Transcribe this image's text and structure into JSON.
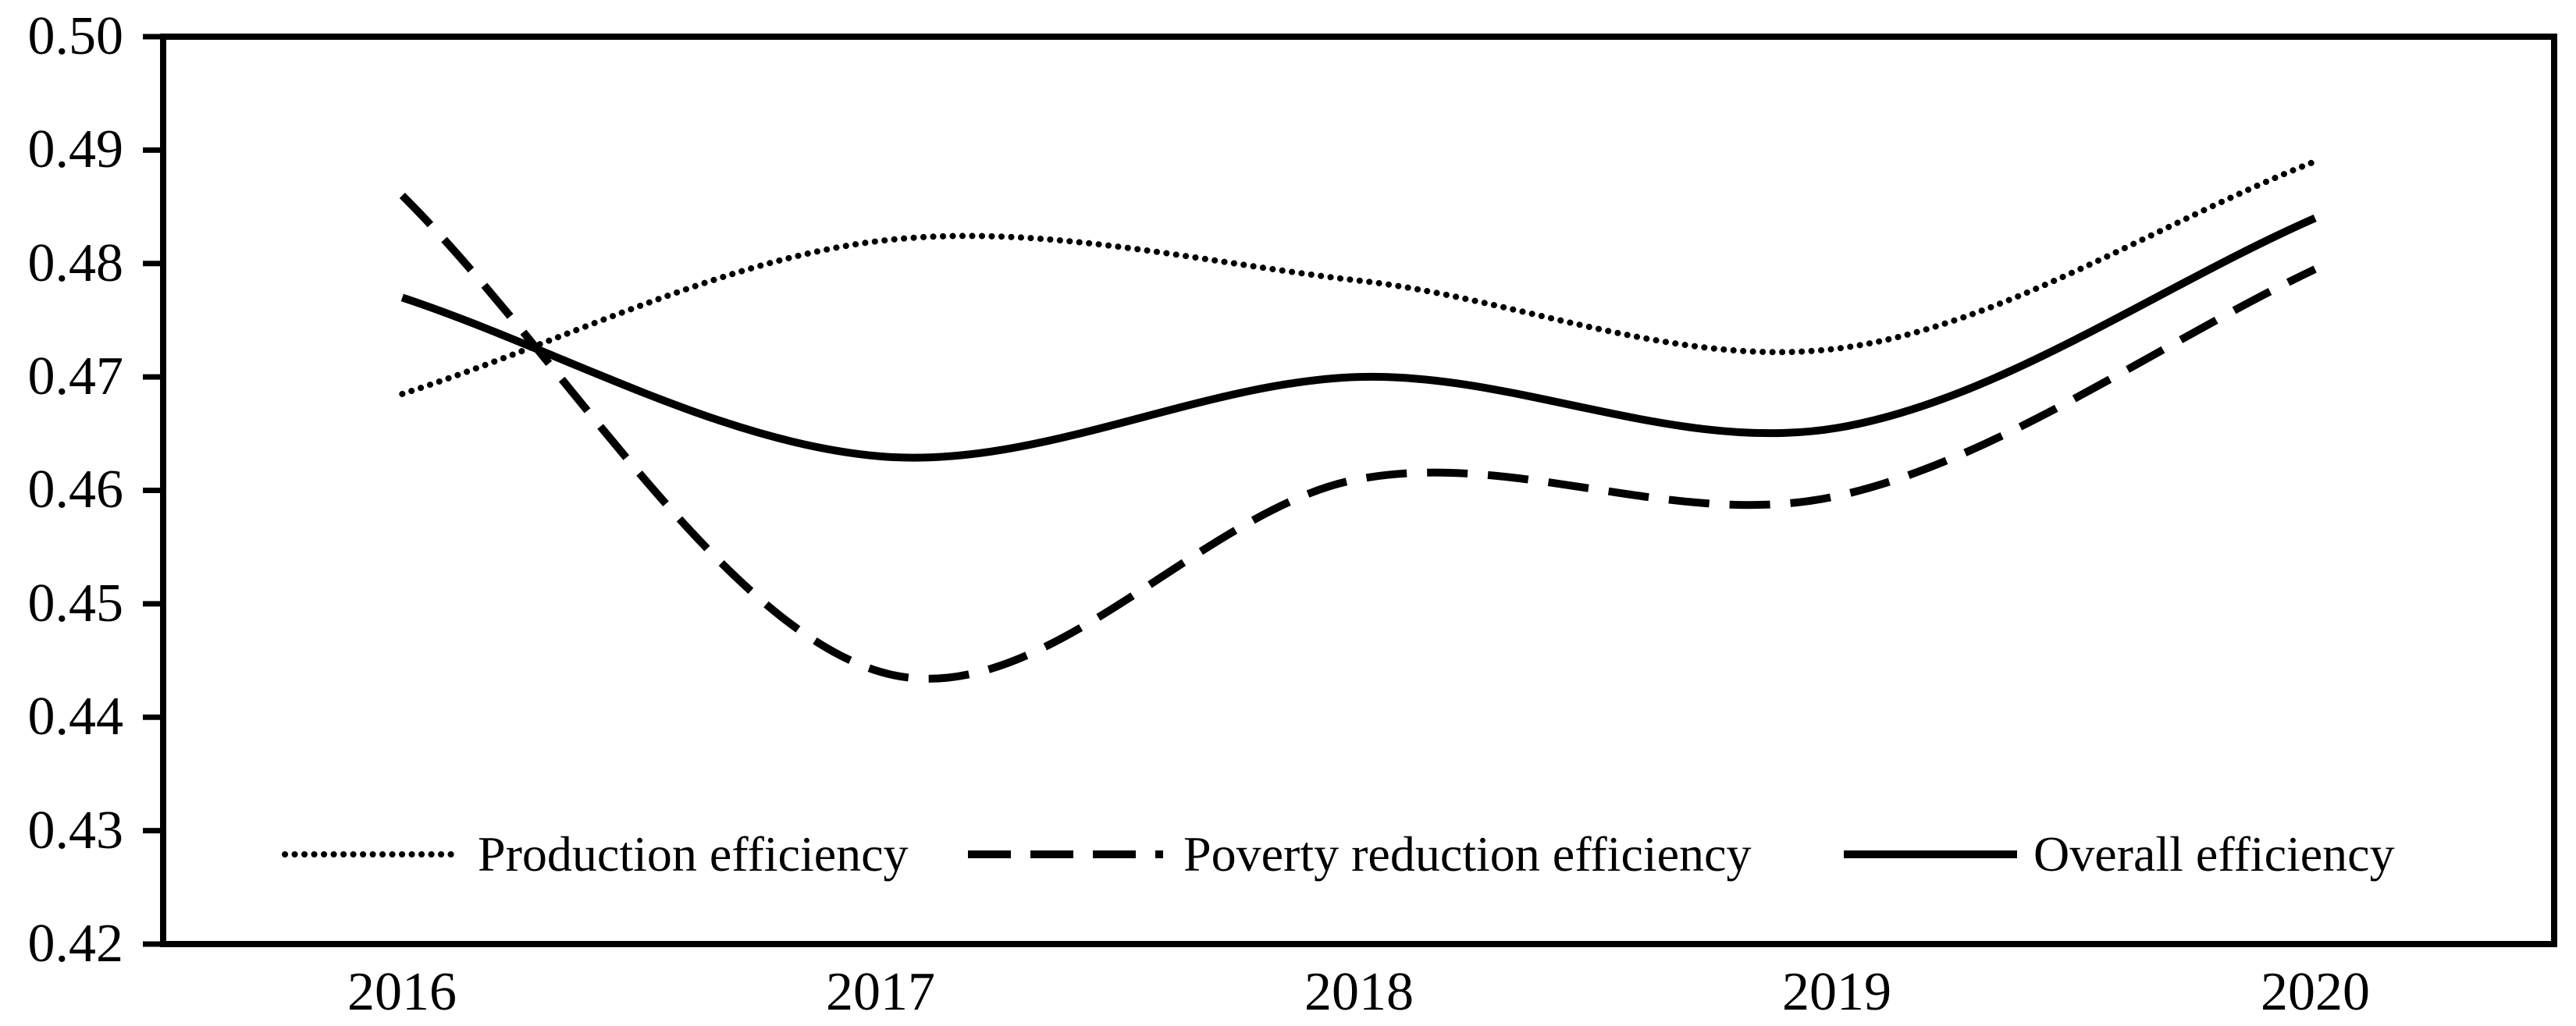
{
  "figure": {
    "background_color": "#ffffff",
    "line_color": "#000000"
  },
  "chart_data": {
    "type": "line",
    "title": "",
    "xlabel": "",
    "ylabel": "",
    "grid": false,
    "legend_position": "bottom inside plot area",
    "ylim": [
      0.42,
      0.5
    ],
    "y_tick_step": 0.01,
    "y_ticks": [
      "0.50",
      "0.49",
      "0.48",
      "0.47",
      "0.46",
      "0.45",
      "0.44",
      "0.43",
      "0.42"
    ],
    "categories": [
      2016,
      2017,
      2018,
      2019,
      2020
    ],
    "x_tick_labels": [
      "2016",
      "2017",
      "2018",
      "2019",
      "2020"
    ],
    "series": [
      {
        "name": "Production efficiency",
        "style": "dotted",
        "color": "#000000",
        "values": [
          0.4685,
          0.482,
          0.4785,
          0.4725,
          0.489
        ]
      },
      {
        "name": "Poverty reduction efficiency",
        "style": "dashed",
        "color": "#000000",
        "values": [
          0.486,
          0.444,
          0.461,
          0.4595,
          0.4795
        ]
      },
      {
        "name": "Overall efficiency",
        "style": "solid",
        "color": "#000000",
        "values": [
          0.477,
          0.463,
          0.47,
          0.4655,
          0.484
        ]
      }
    ]
  }
}
